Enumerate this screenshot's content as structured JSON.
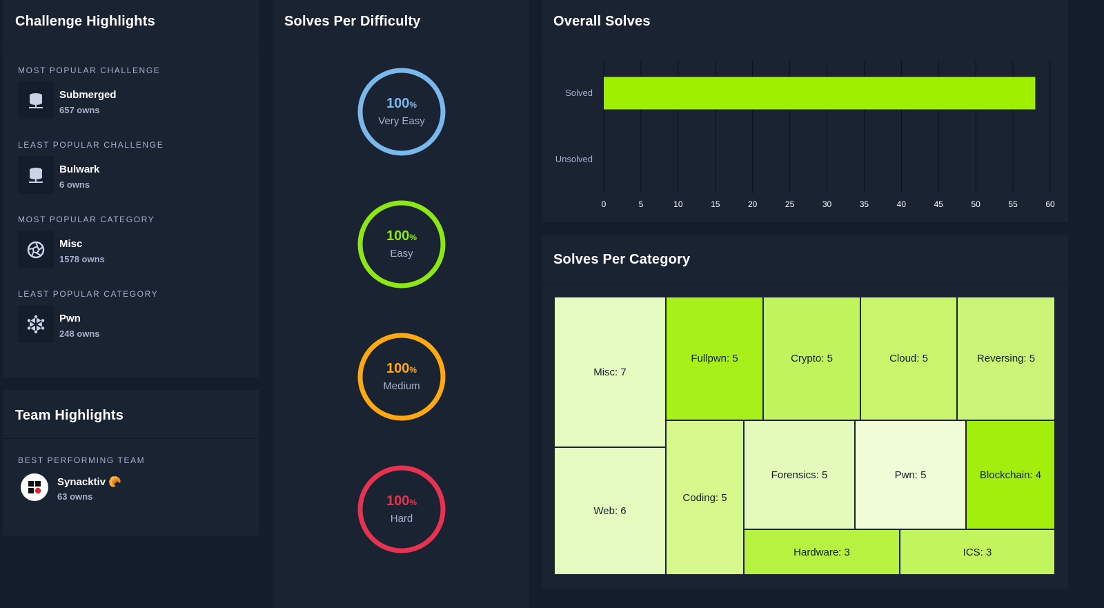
{
  "challenge_highlights": {
    "title": "Challenge Highlights",
    "sections": [
      {
        "label": "MOST POPULAR CHALLENGE",
        "name": "Submerged",
        "sub": "657 owns",
        "icon": "database-server-icon"
      },
      {
        "label": "LEAST POPULAR CHALLENGE",
        "name": "Bulwark",
        "sub": "6 owns",
        "icon": "database-server-icon"
      },
      {
        "label": "MOST POPULAR CATEGORY",
        "name": "Misc",
        "sub": "1578 owns",
        "icon": "aperture-icon"
      },
      {
        "label": "LEAST POPULAR CATEGORY",
        "name": "Pwn",
        "sub": "248 owns",
        "icon": "snowflake-icon"
      }
    ]
  },
  "team_highlights": {
    "title": "Team Highlights",
    "label": "BEST PERFORMING TEAM",
    "team_name": "Synacktiv",
    "team_emoji": "🥐",
    "sub": "63 owns"
  },
  "difficulty": {
    "title": "Solves Per Difficulty",
    "pct_symbol": "%",
    "rings": [
      {
        "value": "100",
        "label": "Very Easy",
        "color": "#7ab7ea"
      },
      {
        "value": "100",
        "label": "Easy",
        "color": "#8ce715"
      },
      {
        "value": "100",
        "label": "Medium",
        "color": "#ffa811"
      },
      {
        "value": "100",
        "label": "Hard",
        "color": "#e7334f"
      }
    ]
  },
  "overall": {
    "title": "Overall Solves"
  },
  "category": {
    "title": "Solves Per Category"
  },
  "chart_data": [
    {
      "type": "bar",
      "orientation": "horizontal",
      "title": "Overall Solves",
      "categories": [
        "Solved",
        "Unsolved"
      ],
      "values": [
        58,
        0
      ],
      "xticks": [
        0,
        5,
        10,
        15,
        20,
        25,
        30,
        35,
        40,
        45,
        50,
        55,
        60
      ],
      "xlim": [
        0,
        60
      ],
      "grid": true,
      "color": "#9fef00"
    },
    {
      "type": "treemap",
      "title": "Solves Per Category",
      "items": [
        {
          "name": "Misc",
          "value": 7,
          "label": "Misc: 7",
          "color": "#e6fbbf"
        },
        {
          "name": "Web",
          "value": 6,
          "label": "Web: 6",
          "color": "#e6fbbf"
        },
        {
          "name": "Fullpwn",
          "value": 5,
          "label": "Fullpwn: 5",
          "color": "#a8f01a"
        },
        {
          "name": "Crypto",
          "value": 5,
          "label": "Crypto: 5",
          "color": "#c0f45c"
        },
        {
          "name": "Cloud",
          "value": 5,
          "label": "Cloud: 5",
          "color": "#c8f56c"
        },
        {
          "name": "Reversing",
          "value": 5,
          "label": "Reversing: 5",
          "color": "#ccf578"
        },
        {
          "name": "Coding",
          "value": 5,
          "label": "Coding: 5",
          "color": "#d6f88d"
        },
        {
          "name": "Forensics",
          "value": 5,
          "label": "Forensics: 5",
          "color": "#e3faba"
        },
        {
          "name": "Pwn",
          "value": 5,
          "label": "Pwn: 5",
          "color": "#effcd5"
        },
        {
          "name": "Blockchain",
          "value": 4,
          "label": "Blockchain: 4",
          "color": "#a2ef0e"
        },
        {
          "name": "Hardware",
          "value": 3,
          "label": "Hardware: 3",
          "color": "#b6f23f"
        },
        {
          "name": "ICS",
          "value": 3,
          "label": "ICS: 3",
          "color": "#c2f45e"
        }
      ]
    }
  ]
}
